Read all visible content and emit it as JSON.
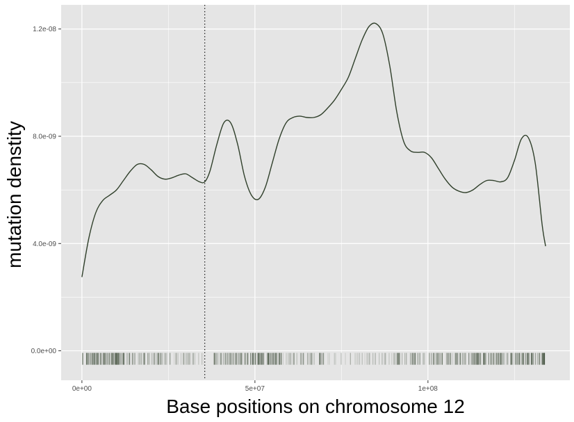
{
  "chart_data": {
    "type": "line",
    "xlabel": "Base positions on chromosome 12",
    "ylabel": "mutation denstity",
    "xlim": [
      -6000000,
      141000000
    ],
    "ylim": [
      -1.1e-09,
      1.29e-08
    ],
    "x_ticks": [
      {
        "value": 0,
        "label": "0e+00"
      },
      {
        "value": 50000000,
        "label": "5e+07"
      },
      {
        "value": 100000000,
        "label": "1e+08"
      }
    ],
    "y_ticks": [
      {
        "value": 0,
        "label": "0.0e+00"
      },
      {
        "value": 4e-09,
        "label": "4.0e-09"
      },
      {
        "value": 8e-09,
        "label": "8.0e-09"
      },
      {
        "value": 1.2e-08,
        "label": "1.2e-08"
      }
    ],
    "grid": true,
    "vline_x": 35500000,
    "colors": {
      "line": "#2f3f2a",
      "rug": "#2f3f2a",
      "panel": "#e5e5e5",
      "grid": "#ffffff"
    },
    "series": [
      {
        "x": [
          0,
          2000000,
          4000000,
          6000000,
          8000000,
          10000000,
          12000000,
          14000000,
          16000000,
          18000000,
          20000000,
          22000000,
          24000000,
          26000000,
          28000000,
          30000000,
          32000000,
          34000000,
          35500000,
          37000000,
          39000000,
          41000000,
          43000000,
          45000000,
          47000000,
          49000000,
          51000000,
          53000000,
          55000000,
          57000000,
          59000000,
          61000000,
          63000000,
          65000000,
          67000000,
          69000000,
          71000000,
          73000000,
          75000000,
          77000000,
          79000000,
          81000000,
          83000000,
          85000000,
          87000000,
          89000000,
          91000000,
          93000000,
          95000000,
          97000000,
          99000000,
          101000000,
          103000000,
          105000000,
          107000000,
          109000000,
          111000000,
          113000000,
          115000000,
          117000000,
          119000000,
          121000000,
          123000000,
          125000000,
          127000000,
          129000000,
          131000000,
          133000000,
          134000000
        ],
        "y": [
          2.75e-09,
          4.2e-09,
          5.15e-09,
          5.6e-09,
          5.8e-09,
          6e-09,
          6.35e-09,
          6.7e-09,
          6.95e-09,
          6.95e-09,
          6.75e-09,
          6.5e-09,
          6.4e-09,
          6.45e-09,
          6.55e-09,
          6.6e-09,
          6.45e-09,
          6.3e-09,
          6.3e-09,
          6.7e-09,
          7.7e-09,
          8.5e-09,
          8.5e-09,
          7.7e-09,
          6.5e-09,
          5.8e-09,
          5.65e-09,
          6.1e-09,
          7e-09,
          7.9e-09,
          8.5e-09,
          8.7e-09,
          8.75e-09,
          8.7e-09,
          8.7e-09,
          8.8e-09,
          9.05e-09,
          9.35e-09,
          9.75e-09,
          1.02e-08,
          1.09e-08,
          1.16e-08,
          1.21e-08,
          1.22e-08,
          1.18e-08,
          1.06e-08,
          8.9e-09,
          7.8e-09,
          7.45e-09,
          7.4e-09,
          7.4e-09,
          7.2e-09,
          6.8e-09,
          6.4e-09,
          6.1e-09,
          5.95e-09,
          5.9e-09,
          6e-09,
          6.2e-09,
          6.35e-09,
          6.35e-09,
          6.3e-09,
          6.45e-09,
          7.1e-09,
          7.9e-09,
          7.95e-09,
          7e-09,
          4.7e-09,
          3.9e-09
        ]
      }
    ],
    "rug_regions": [
      {
        "start": 0,
        "end": 15000000,
        "density": 0.9
      },
      {
        "start": 15000000,
        "end": 25000000,
        "density": 0.55
      },
      {
        "start": 25000000,
        "end": 34000000,
        "density": 0.4
      },
      {
        "start": 34500000,
        "end": 36000000,
        "density": 0.2
      },
      {
        "start": 38000000,
        "end": 48000000,
        "density": 0.75
      },
      {
        "start": 48000000,
        "end": 58000000,
        "density": 0.95
      },
      {
        "start": 58000000,
        "end": 70000000,
        "density": 0.5
      },
      {
        "start": 70000000,
        "end": 84000000,
        "density": 0.25
      },
      {
        "start": 84000000,
        "end": 91000000,
        "density": 0.35
      },
      {
        "start": 91000000,
        "end": 100000000,
        "density": 0.6
      },
      {
        "start": 100000000,
        "end": 114000000,
        "density": 0.7
      },
      {
        "start": 114000000,
        "end": 125000000,
        "density": 0.8
      },
      {
        "start": 125000000,
        "end": 134000000,
        "density": 0.95
      }
    ]
  }
}
